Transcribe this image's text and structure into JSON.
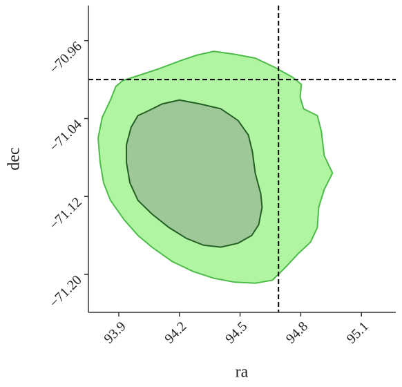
{
  "chart_data": {
    "type": "contour",
    "xlabel": "ra",
    "ylabel": "dec",
    "xlim": [
      93.75,
      95.27
    ],
    "ylim": [
      -71.239,
      -70.924
    ],
    "xticks": [
      93.9,
      94.2,
      94.5,
      94.8,
      95.1
    ],
    "yticks": [
      {
        "value": -70.96,
        "label": "−70.96"
      },
      {
        "value": -71.04,
        "label": "−71.04"
      },
      {
        "value": -71.12,
        "label": "−71.12"
      },
      {
        "value": -71.2,
        "label": "−71.20"
      }
    ],
    "truths": {
      "x": 94.69,
      "y": -71.0,
      "color": "#000000"
    },
    "contours": [
      {
        "fill": "#b1f5a3",
        "edge": "#4dbb4a",
        "x": [
          94.37,
          94.473,
          94.575,
          94.677,
          94.763,
          94.803,
          94.797,
          94.814,
          94.882,
          94.902,
          94.916,
          94.957,
          94.916,
          94.889,
          94.882,
          94.848,
          94.786,
          94.728,
          94.66,
          94.575,
          94.473,
          94.37,
          94.268,
          94.166,
          94.064,
          93.995,
          93.927,
          93.859,
          93.825,
          93.808,
          93.798,
          93.818,
          93.859,
          93.886,
          93.92,
          93.995,
          94.098,
          94.2,
          94.285
        ],
        "y": [
          -70.971,
          -70.974,
          -70.978,
          -70.988,
          -70.998,
          -71.005,
          -71.018,
          -71.03,
          -71.037,
          -71.053,
          -71.078,
          -71.096,
          -71.113,
          -71.131,
          -71.152,
          -71.167,
          -71.179,
          -71.192,
          -71.206,
          -71.209,
          -71.208,
          -71.204,
          -71.197,
          -71.187,
          -71.172,
          -71.16,
          -71.144,
          -71.124,
          -71.106,
          -71.085,
          -71.06,
          -71.039,
          -71.021,
          -71.007,
          -71.001,
          -70.996,
          -70.989,
          -70.981,
          -70.975
        ]
      },
      {
        "fill": "#9fc899",
        "edge": "#245f24",
        "x": [
          94.2,
          94.302,
          94.405,
          94.49,
          94.541,
          94.561,
          94.575,
          94.602,
          94.609,
          94.592,
          94.558,
          94.49,
          94.405,
          94.319,
          94.234,
          94.149,
          94.064,
          93.995,
          93.955,
          93.938,
          93.938,
          93.961,
          93.995,
          94.047,
          94.115
        ],
        "y": [
          -71.021,
          -71.025,
          -71.03,
          -71.042,
          -71.057,
          -71.074,
          -71.096,
          -71.117,
          -71.131,
          -71.149,
          -71.16,
          -71.168,
          -71.172,
          -71.17,
          -71.163,
          -71.152,
          -71.138,
          -71.124,
          -71.106,
          -71.085,
          -71.067,
          -71.049,
          -71.037,
          -71.032,
          -71.025
        ]
      }
    ]
  }
}
